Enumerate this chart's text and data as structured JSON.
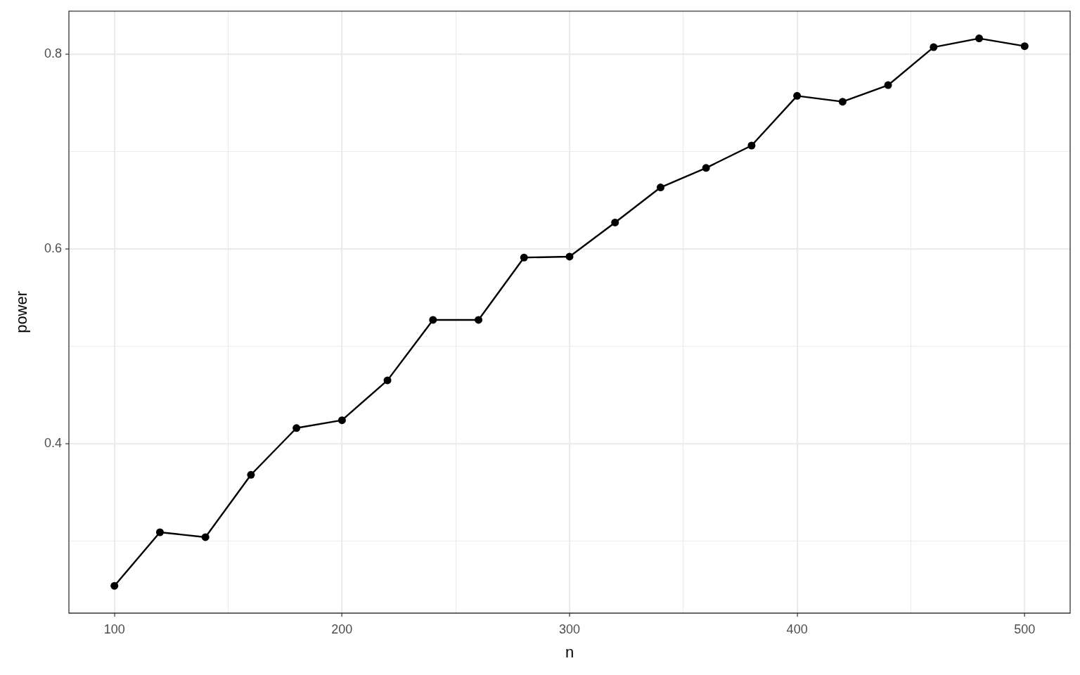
{
  "chart_data": {
    "type": "line",
    "xlabel": "n",
    "ylabel": "power",
    "x": [
      100,
      120,
      140,
      160,
      180,
      200,
      220,
      240,
      260,
      280,
      300,
      320,
      340,
      360,
      380,
      400,
      420,
      440,
      460,
      480,
      500
    ],
    "values": [
      0.254,
      0.309,
      0.304,
      0.368,
      0.416,
      0.424,
      0.465,
      0.527,
      0.527,
      0.591,
      0.592,
      0.627,
      0.663,
      0.683,
      0.706,
      0.757,
      0.751,
      0.768,
      0.807,
      0.816,
      0.808
    ],
    "color": "#000000",
    "marker": "circle",
    "line_style": "solid",
    "xlim": [
      80,
      520
    ],
    "ylim": [
      0.226,
      0.844
    ],
    "xticks": [
      100,
      {
        "value": 150,
        "label": null
      },
      200,
      {
        "value": 250,
        "label": null
      },
      300,
      {
        "value": 350,
        "label": null
      },
      400,
      {
        "value": 450,
        "label": null
      },
      500
    ],
    "yticks": [
      {
        "value": 0.3,
        "label": null
      },
      0.4,
      {
        "value": 0.5,
        "label": null
      },
      0.6,
      {
        "value": 0.7,
        "label": null
      },
      0.8
    ],
    "grid": true
  }
}
